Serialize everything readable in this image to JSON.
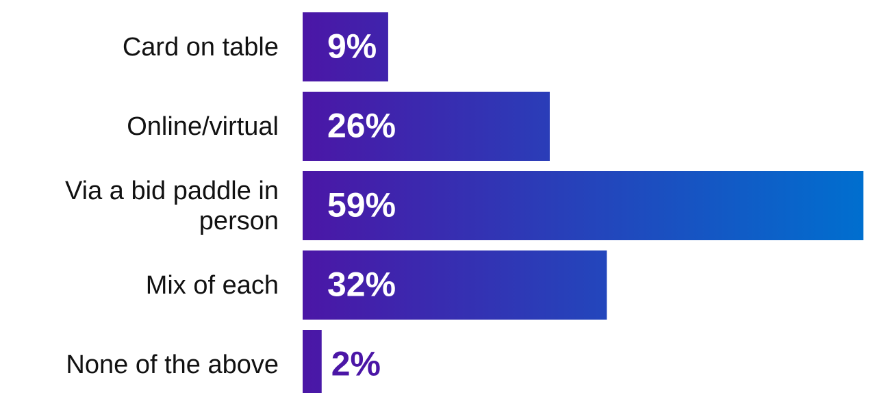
{
  "chart_data": {
    "type": "bar",
    "orientation": "horizontal",
    "categories": [
      "Card on table",
      "Online/virtual",
      "Via a bid paddle in person",
      "Mix of each",
      "None of the above"
    ],
    "values": [
      9,
      26,
      59,
      32,
      2
    ],
    "value_labels": [
      "9%",
      "26%",
      "59%",
      "32%",
      "2%"
    ],
    "colors": [
      "#4b16a6",
      "#006fcf"
    ]
  }
}
